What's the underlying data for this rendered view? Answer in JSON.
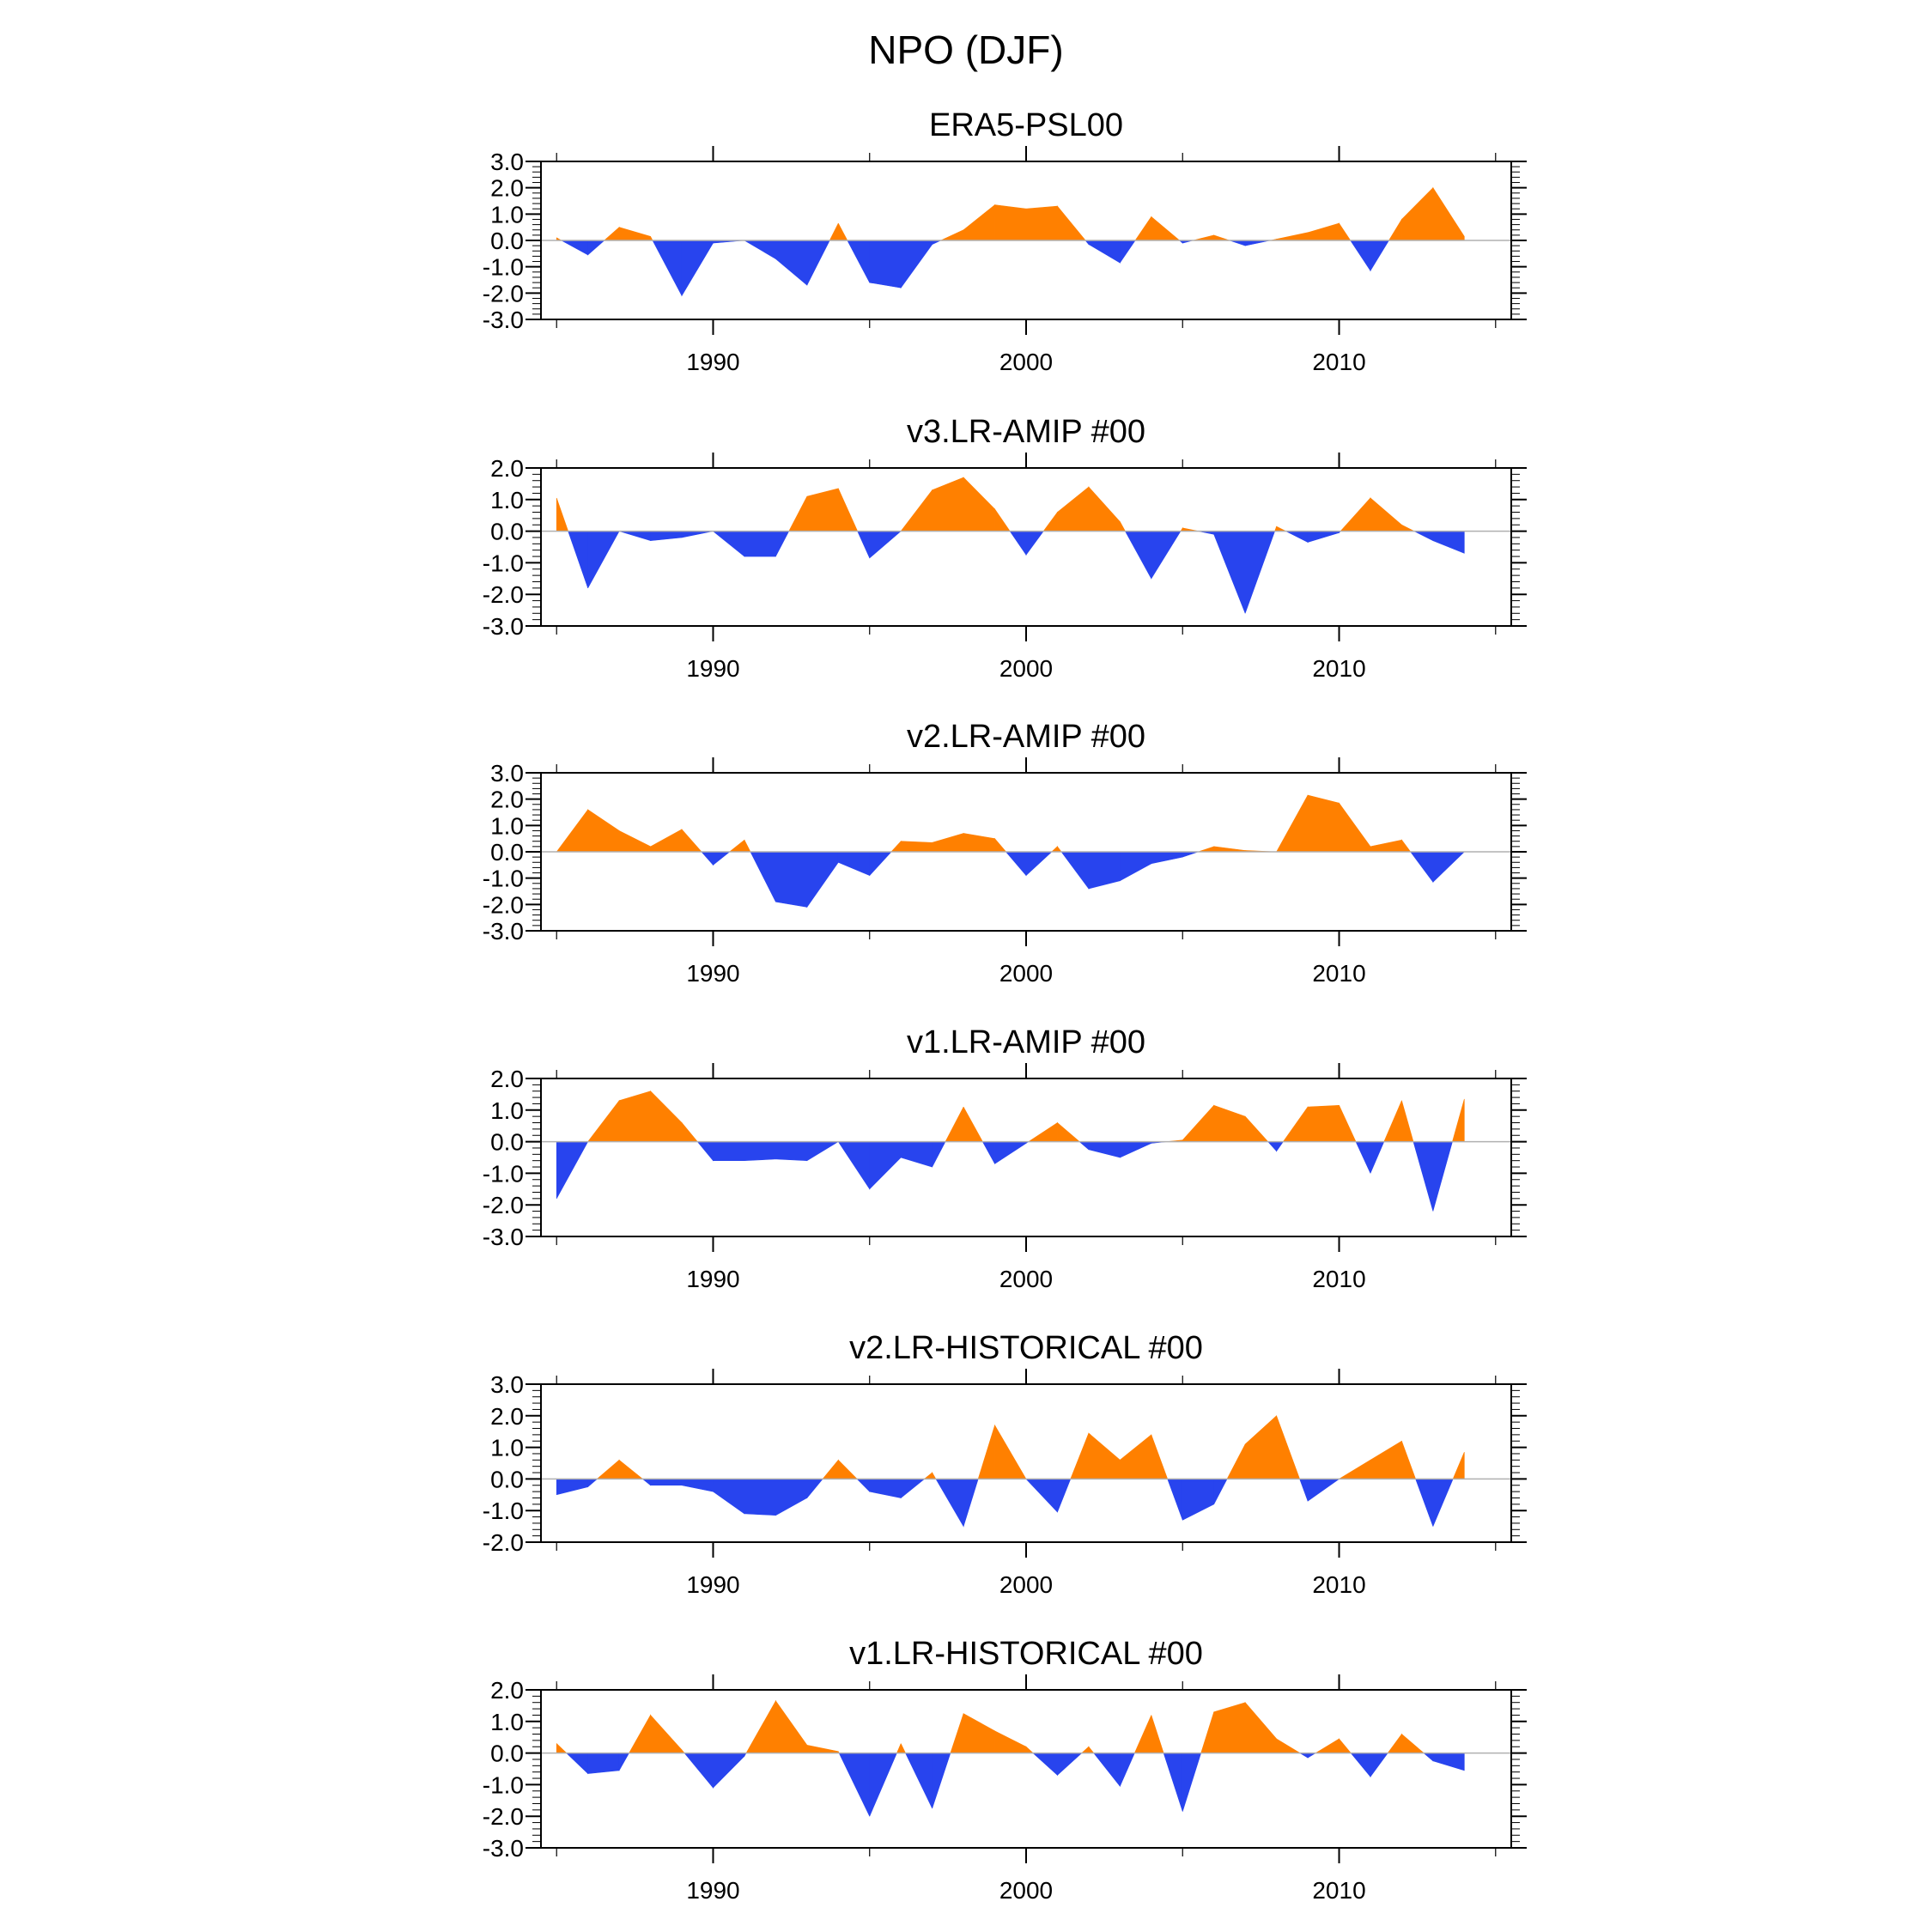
{
  "figure": {
    "title": "NPO (DJF)"
  },
  "colors": {
    "positive": "#ff8000",
    "negative": "#2844ee",
    "axis": "#000000",
    "zero_line": "#b0b0b0"
  },
  "chart_data": [
    {
      "type": "area",
      "title": "ERA5-PSL00",
      "ylim": [
        -3,
        3
      ],
      "yticks": [
        "3.0",
        "2.0",
        "1.0",
        "0.0",
        "-1.0",
        "-2.0",
        "-3.0"
      ],
      "xlim": [
        1984.5,
        2015.5
      ],
      "xticks": [
        "1990",
        "2000",
        "2010"
      ],
      "x": [
        1985,
        1986,
        1987,
        1988,
        1989,
        1990,
        1991,
        1992,
        1993,
        1994,
        1995,
        1996,
        1997,
        1998,
        1999,
        2000,
        2001,
        2002,
        2003,
        2004,
        2005,
        2006,
        2007,
        2008,
        2009,
        2010,
        2011,
        2012,
        2013,
        2014
      ],
      "values": [
        0.1,
        -0.55,
        0.5,
        0.15,
        -2.1,
        -0.1,
        0.0,
        -0.7,
        -1.7,
        0.65,
        -1.6,
        -1.8,
        -0.15,
        0.4,
        1.35,
        1.2,
        1.3,
        -0.15,
        -0.85,
        0.9,
        -0.1,
        0.2,
        -0.2,
        0.05,
        0.3,
        0.65,
        -1.15,
        0.8,
        2.0,
        0.15
      ]
    },
    {
      "type": "area",
      "title": "v3.LR-AMIP  #00",
      "ylim": [
        -3,
        2
      ],
      "yticks": [
        "2.0",
        "1.0",
        "0.0",
        "-1.0",
        "-2.0",
        "-3.0"
      ],
      "xlim": [
        1984.5,
        2015.5
      ],
      "xticks": [
        "1990",
        "2000",
        "2010"
      ],
      "x": [
        1985,
        1986,
        1987,
        1988,
        1989,
        1990,
        1991,
        1992,
        1993,
        1994,
        1995,
        1996,
        1997,
        1998,
        1999,
        2000,
        2001,
        2002,
        2003,
        2004,
        2005,
        2006,
        2007,
        2008,
        2009,
        2010,
        2011,
        2012,
        2013,
        2014
      ],
      "values": [
        1.05,
        -1.8,
        0.0,
        -0.3,
        -0.2,
        0.0,
        -0.8,
        -0.8,
        1.1,
        1.35,
        -0.85,
        0.0,
        1.3,
        1.7,
        0.7,
        -0.75,
        0.6,
        1.4,
        0.3,
        -1.5,
        0.1,
        -0.1,
        -2.6,
        0.15,
        -0.35,
        -0.05,
        1.05,
        0.2,
        -0.3,
        -0.7
      ]
    },
    {
      "type": "area",
      "title": "v2.LR-AMIP  #00",
      "ylim": [
        -3,
        3
      ],
      "yticks": [
        "3.0",
        "2.0",
        "1.0",
        "0.0",
        "-1.0",
        "-2.0",
        "-3.0"
      ],
      "xlim": [
        1984.5,
        2015.5
      ],
      "xticks": [
        "1990",
        "2000",
        "2010"
      ],
      "x": [
        1985,
        1986,
        1987,
        1988,
        1989,
        1990,
        1991,
        1992,
        1993,
        1994,
        1995,
        1996,
        1997,
        1998,
        1999,
        2000,
        2001,
        2002,
        2003,
        2004,
        2005,
        2006,
        2007,
        2008,
        2009,
        2010,
        2011,
        2012,
        2013,
        2014
      ],
      "values": [
        0.0,
        1.6,
        0.8,
        0.2,
        0.85,
        -0.5,
        0.45,
        -1.9,
        -2.1,
        -0.4,
        -0.9,
        0.4,
        0.35,
        0.7,
        0.5,
        -0.9,
        0.2,
        -1.4,
        -1.1,
        -0.45,
        -0.2,
        0.2,
        0.05,
        0.0,
        2.15,
        1.85,
        0.2,
        0.45,
        -1.15,
        0.0
      ]
    },
    {
      "type": "area",
      "title": "v1.LR-AMIP  #00",
      "ylim": [
        -3,
        2
      ],
      "yticks": [
        "2.0",
        "1.0",
        "0.0",
        "-1.0",
        "-2.0",
        "-3.0"
      ],
      "xlim": [
        1984.5,
        2015.5
      ],
      "xticks": [
        "1990",
        "2000",
        "2010"
      ],
      "x": [
        1985,
        1986,
        1987,
        1988,
        1989,
        1990,
        1991,
        1992,
        1993,
        1994,
        1995,
        1996,
        1997,
        1998,
        1999,
        2000,
        2001,
        2002,
        2003,
        2004,
        2005,
        2006,
        2007,
        2008,
        2009,
        2010,
        2011,
        2012,
        2013,
        2014
      ],
      "values": [
        -1.8,
        0.0,
        1.3,
        1.6,
        0.6,
        -0.6,
        -0.6,
        -0.55,
        -0.6,
        0.0,
        -1.5,
        -0.5,
        -0.8,
        1.1,
        -0.7,
        -0.05,
        0.6,
        -0.25,
        -0.5,
        -0.05,
        0.05,
        1.15,
        0.8,
        -0.3,
        1.1,
        1.15,
        -1.0,
        1.3,
        -2.2,
        1.35
      ]
    },
    {
      "type": "area",
      "title": "v2.LR-HISTORICAL  #00",
      "ylim": [
        -2,
        3
      ],
      "yticks": [
        "3.0",
        "2.0",
        "1.0",
        "0.0",
        "-1.0",
        "-2.0"
      ],
      "xlim": [
        1984.5,
        2015.5
      ],
      "xticks": [
        "1990",
        "2000",
        "2010"
      ],
      "x": [
        1985,
        1986,
        1987,
        1988,
        1989,
        1990,
        1991,
        1992,
        1993,
        1994,
        1995,
        1996,
        1997,
        1998,
        1999,
        2000,
        2001,
        2002,
        2003,
        2004,
        2005,
        2006,
        2007,
        2008,
        2009,
        2010,
        2011,
        2012,
        2013,
        2014
      ],
      "values": [
        -0.5,
        -0.25,
        0.6,
        -0.2,
        -0.2,
        -0.4,
        -1.1,
        -1.15,
        -0.6,
        0.6,
        -0.4,
        -0.6,
        0.2,
        -1.5,
        1.7,
        0.0,
        -1.05,
        1.45,
        0.6,
        1.4,
        -1.3,
        -0.8,
        1.1,
        2.0,
        -0.7,
        0.0,
        0.6,
        1.2,
        -1.5,
        0.85
      ]
    },
    {
      "type": "area",
      "title": "v1.LR-HISTORICAL  #00",
      "ylim": [
        -3,
        2
      ],
      "yticks": [
        "2.0",
        "1.0",
        "0.0",
        "-1.0",
        "-2.0",
        "-3.0"
      ],
      "xlim": [
        1984.5,
        2015.5
      ],
      "xticks": [
        "1990",
        "2000",
        "2010"
      ],
      "x": [
        1985,
        1986,
        1987,
        1988,
        1989,
        1990,
        1991,
        1992,
        1993,
        1994,
        1995,
        1996,
        1997,
        1998,
        1999,
        2000,
        2001,
        2002,
        2003,
        2004,
        2005,
        2006,
        2007,
        2008,
        2009,
        2010,
        2011,
        2012,
        2013,
        2014
      ],
      "values": [
        0.3,
        -0.65,
        -0.55,
        1.2,
        0.1,
        -1.1,
        -0.1,
        1.65,
        0.25,
        0.05,
        -2.0,
        0.3,
        -1.75,
        1.25,
        0.7,
        0.2,
        -0.7,
        0.2,
        -1.05,
        1.2,
        -1.85,
        1.3,
        1.6,
        0.45,
        -0.15,
        0.45,
        -0.75,
        0.6,
        -0.25,
        -0.55
      ]
    }
  ]
}
